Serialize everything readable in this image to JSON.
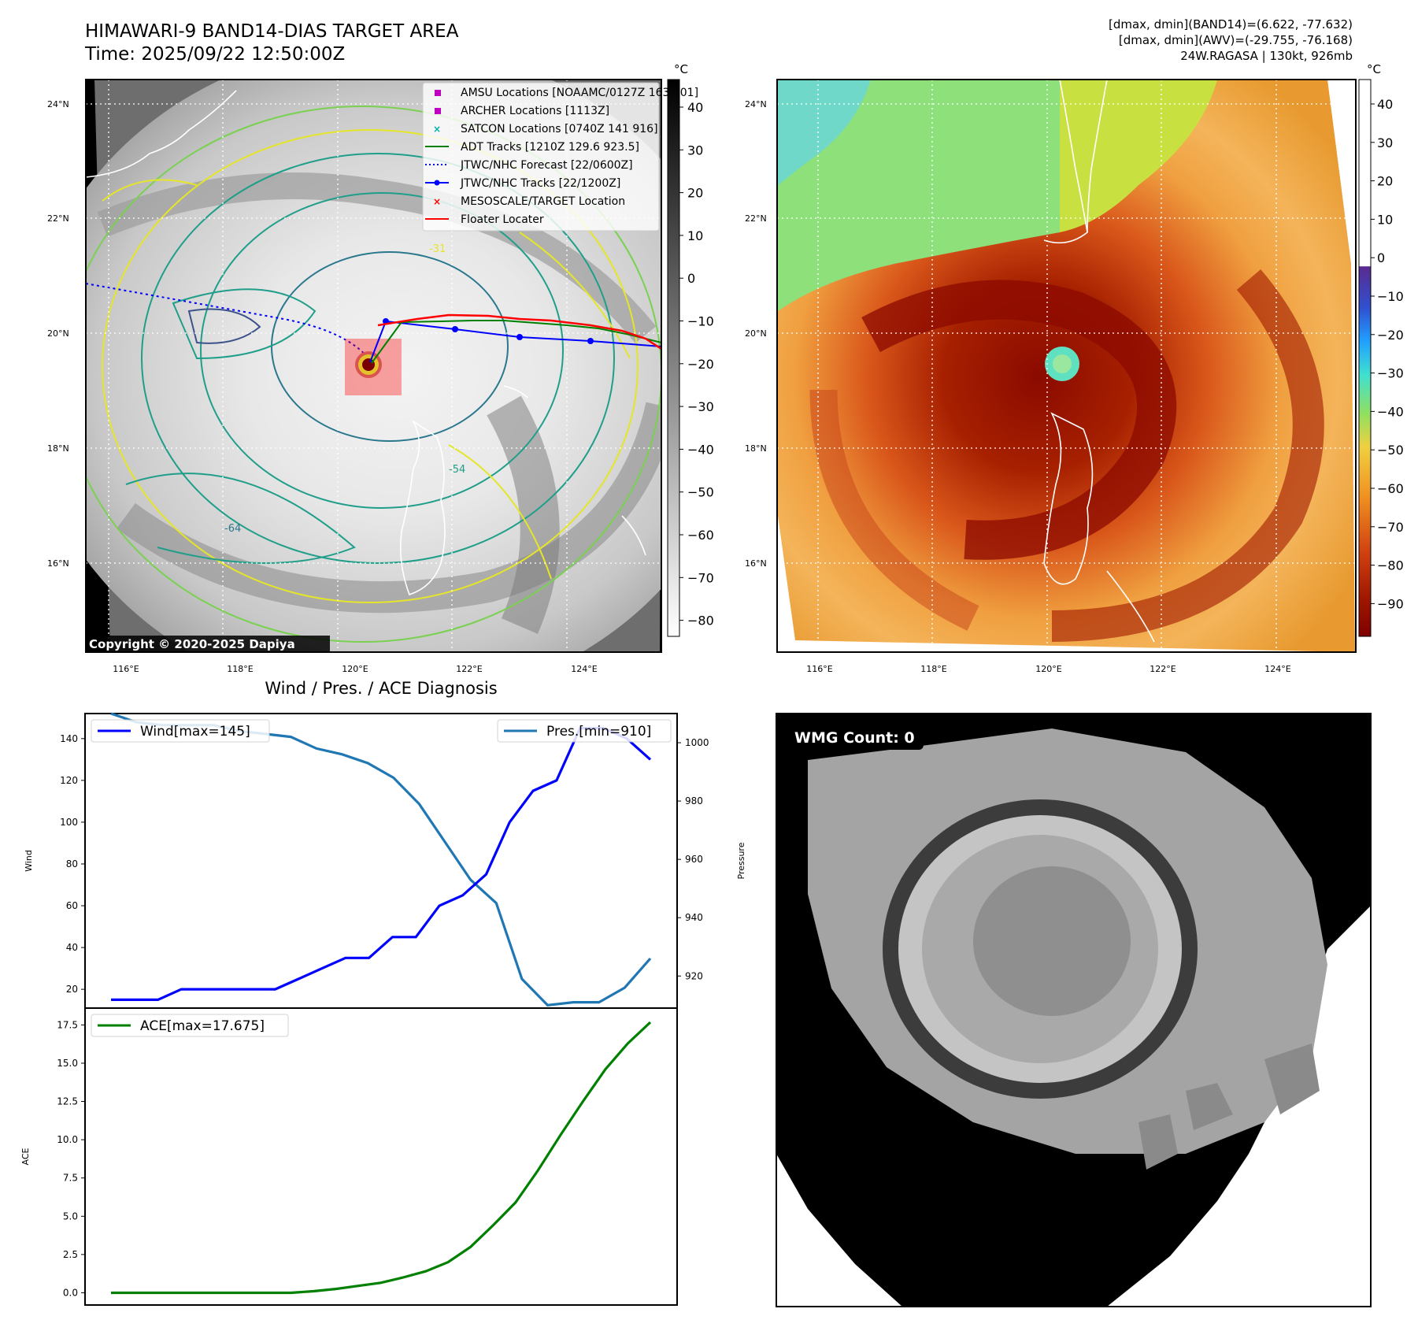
{
  "header": {
    "title_line1": "HIMAWARI-9 BAND14-DIAS TARGET AREA",
    "title_line2": "Time: 2025/09/22 12:50:00Z",
    "stat_line1": "[dmax, dmin](BAND14)=(6.622, -77.632)",
    "stat_line2": "[dmax, dmin](AWV)=(-29.755, -76.168)",
    "stat_line3": "24W.RAGASA | 130kt, 926mb"
  },
  "map_left": {
    "lon_ticks": [
      "116°E",
      "118°E",
      "120°E",
      "122°E",
      "124°E"
    ],
    "lat_ticks": [
      "24°N",
      "22°N",
      "20°N",
      "18°N",
      "16°N"
    ],
    "copyright": "Copyright © 2020-2025 Dapiya",
    "contour_labels": [
      "-31",
      "-54",
      "-64"
    ],
    "legend": [
      {
        "label": "AMSU Locations [NOAAMC/0127Z 163 901]",
        "color": "#c000c0",
        "marker": "square"
      },
      {
        "label": "ARCHER Locations [1113Z]",
        "color": "#c000c0",
        "marker": "square"
      },
      {
        "label": "SATCON Locations [0740Z 141 916]",
        "color": "#00b0b0",
        "marker": "x"
      },
      {
        "label": "ADT Tracks [1210Z 129.6 923.5]",
        "color": "#008000",
        "marker": "line"
      },
      {
        "label": "JTWC/NHC Forecast [22/0600Z]",
        "color": "#0000ff",
        "marker": "dotted"
      },
      {
        "label": "JTWC/NHC Tracks [22/1200Z]",
        "color": "#0000ff",
        "marker": "line-dot"
      },
      {
        "label": "MESOSCALE/TARGET Location",
        "color": "#ff0000",
        "marker": "x"
      },
      {
        "label": "Floater Locater",
        "color": "#ff0000",
        "marker": "line"
      }
    ]
  },
  "colorbar_left": {
    "unit": "°C",
    "ticks": [
      "40",
      "30",
      "20",
      "10",
      "0",
      "−10",
      "−20",
      "−30",
      "−40",
      "−50",
      "−60",
      "−70",
      "−80"
    ]
  },
  "map_right": {
    "lon_ticks": [
      "116°E",
      "118°E",
      "120°E",
      "122°E",
      "124°E"
    ],
    "lat_ticks": [
      "24°N",
      "22°N",
      "20°N",
      "18°N",
      "16°N"
    ]
  },
  "colorbar_right": {
    "unit": "°C",
    "ticks": [
      "40",
      "30",
      "20",
      "10",
      "0",
      "−10",
      "−20",
      "−30",
      "−40",
      "−50",
      "−60",
      "−70",
      "−80",
      "−90"
    ]
  },
  "wmg": {
    "label": "WMG Count: 0"
  },
  "chart_data": [
    {
      "type": "line",
      "title": "Wind / Pres. / ACE Diagnosis",
      "ylabel": "Wind",
      "y2label": "Pressure",
      "ylim": [
        11,
        152
      ],
      "y2lim": [
        909,
        1010
      ],
      "yticks": [
        "20",
        "40",
        "60",
        "80",
        "100",
        "120",
        "140"
      ],
      "y2ticks": [
        "920",
        "940",
        "960",
        "980",
        "1000"
      ],
      "series": [
        {
          "name": "Wind[max=145]",
          "color": "#0000ff",
          "values": [
            15,
            15,
            15,
            20,
            20,
            20,
            20,
            20,
            25,
            30,
            35,
            35,
            45,
            45,
            60,
            65,
            75,
            100,
            115,
            120,
            145,
            145,
            140,
            130
          ]
        },
        {
          "name": "Pres.[min=910]",
          "color": "#1f77b4",
          "axis": "right",
          "values": [
            1010,
            1007,
            1006,
            1006,
            1006,
            1004,
            1003,
            1002,
            998,
            996,
            993,
            988,
            979,
            966,
            953,
            945,
            919,
            910,
            911,
            911,
            916,
            926
          ]
        }
      ]
    },
    {
      "type": "line",
      "ylabel": "ACE",
      "ylim": [
        -0.8,
        18.6
      ],
      "yticks": [
        "0.0",
        "2.5",
        "5.0",
        "7.5",
        "10.0",
        "12.5",
        "15.0",
        "17.5"
      ],
      "series": [
        {
          "name": "ACE[max=17.675]",
          "color": "#008000",
          "values": [
            0,
            0,
            0,
            0,
            0,
            0,
            0,
            0,
            0,
            0.1,
            0.25,
            0.45,
            0.65,
            1.0,
            1.4,
            2.0,
            3.0,
            4.4,
            5.9,
            8.0,
            10.3,
            12.5,
            14.6,
            16.3,
            17.675
          ]
        }
      ]
    }
  ]
}
